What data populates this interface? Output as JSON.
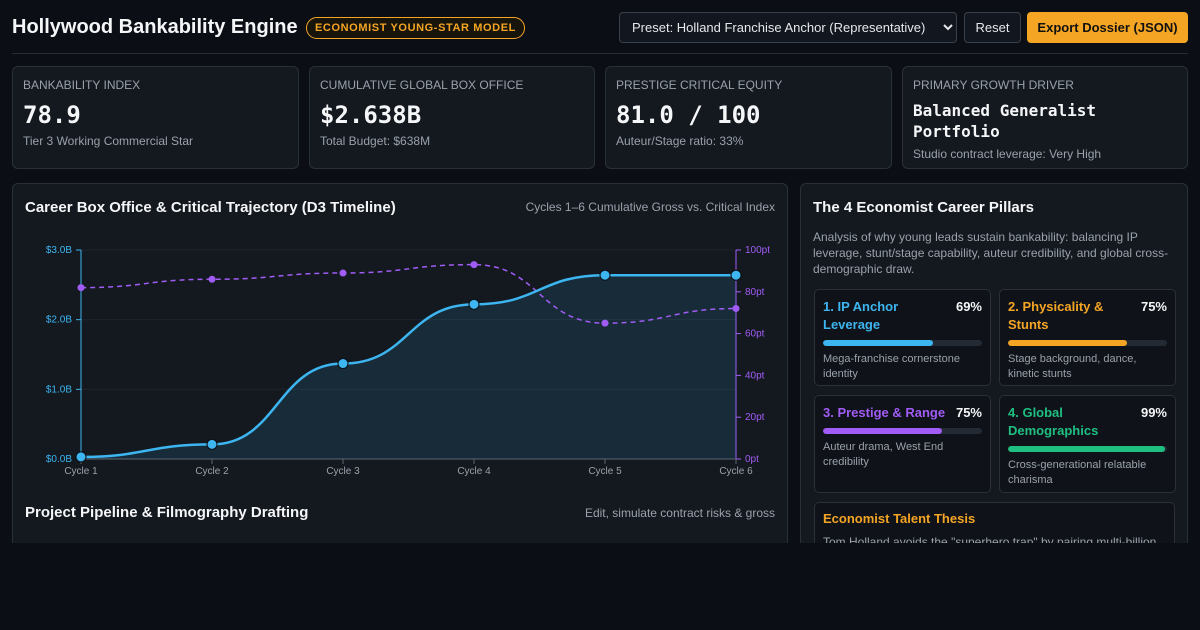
{
  "header": {
    "title": "Hollywood Bankability Engine",
    "badge": "ECONOMIST YOUNG-STAR MODEL",
    "preset_selected": "Preset: Holland Franchise Anchor (Representative)",
    "reset_label": "Reset",
    "export_label": "Export Dossier (JSON)"
  },
  "kpis": [
    {
      "label": "Bankability Index",
      "value": "78.9",
      "sub": "Tier 3 Working Commercial Star"
    },
    {
      "label": "Cumulative Global Box Office",
      "value": "$2.638B",
      "sub": "Total Budget: $638M"
    },
    {
      "label": "Prestige Critical Equity",
      "value": "81.0 / 100",
      "sub": "Auteur/Stage ratio: 33%"
    },
    {
      "label": "Primary Growth Driver",
      "value": "Balanced Generalist Portfolio",
      "sub": "Studio contract leverage: Very High"
    }
  ],
  "trajectory": {
    "title": "Career Box Office & Critical Trajectory (D3 Timeline)",
    "note": "Cycles 1–6 Cumulative Gross vs. Critical Index"
  },
  "chart_data": {
    "type": "line",
    "categories": [
      "Cycle 1",
      "Cycle 2",
      "Cycle 3",
      "Cycle 4",
      "Cycle 5",
      "Cycle 6"
    ],
    "series": [
      {
        "values": [
          0.03,
          0.21,
          1.37,
          2.22,
          2.638,
          2.638
        ],
        "axis": "left",
        "color": "#3db5f0",
        "style": "solid"
      },
      {
        "values": [
          82,
          86,
          89,
          93,
          65,
          72
        ],
        "axis": "right",
        "color": "#a05cf5",
        "style": "dashed"
      }
    ],
    "yleft": {
      "ticks": [
        "$0.0B",
        "$1.0B",
        "$2.0B",
        "$3.0B"
      ],
      "range": [
        0,
        3
      ]
    },
    "yright": {
      "ticks": [
        "0pt",
        "20pt",
        "40pt",
        "60pt",
        "80pt",
        "100pt"
      ],
      "range": [
        0,
        100
      ]
    },
    "grid": true
  },
  "pipeline": {
    "title": "Project Pipeline & Filmography Drafting",
    "note": "Edit, simulate contract risks & gross"
  },
  "pillars_panel": {
    "title": "The 4 Economist Career Pillars",
    "intro": "Analysis of why young leads sustain bankability: balancing IP leverage, stunt/stage capability, auteur credibility, and global cross-demographic draw.",
    "pillars": [
      {
        "name": "1. IP Anchor Leverage",
        "pct": "69%",
        "value": 69,
        "color": "#3db5f0",
        "desc": "Mega-franchise cornerstone identity"
      },
      {
        "name": "2. Physicality & Stunts",
        "pct": "75%",
        "value": 75,
        "color": "#f5a524",
        "desc": "Stage background, dance, kinetic stunts"
      },
      {
        "name": "3. Prestige & Range",
        "pct": "75%",
        "value": 75,
        "color": "#a05cf5",
        "desc": "Auteur drama, West End credibility"
      },
      {
        "name": "4. Global Demographics",
        "pct": "99%",
        "value": 99,
        "color": "#1fbf82",
        "desc": "Cross-generational relatable charisma"
      }
    ],
    "thesis_title": "Economist Talent Thesis",
    "thesis_text": "Tom Holland avoids the \"superhero trap\" by pairing multi-billion"
  }
}
